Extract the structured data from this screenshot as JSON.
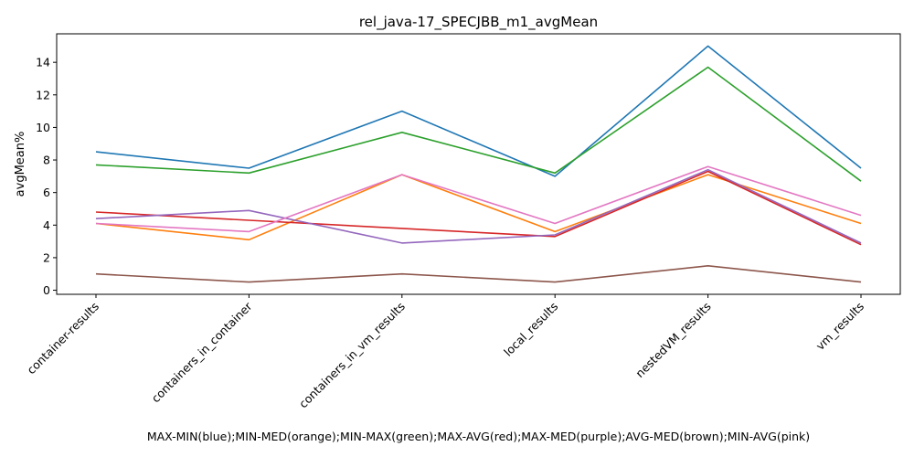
{
  "chart_data": {
    "type": "line",
    "title": "rel_java-17_SPECJBB_m1_avgMean",
    "xlabel": "MAX-MIN(blue);MIN-MED(orange);MIN-MAX(green);MAX-AVG(red);MAX-MED(purple);AVG-MED(brown);MIN-AVG(pink)",
    "ylabel": "avgMean%",
    "categories": [
      "container-results",
      "containers_in_container",
      "containers_in_vm_results",
      "local_results",
      "nestedVM_results",
      "vm_results"
    ],
    "ylim": [
      -0.25,
      15.75
    ],
    "yticks": [
      0,
      2,
      4,
      6,
      8,
      10,
      12,
      14
    ],
    "ytick_labels": [
      "0",
      "2",
      "4",
      "6",
      "8",
      "10",
      "12",
      "14"
    ],
    "grid": false,
    "series": [
      {
        "color": "#1f77b4",
        "values": [
          8.5,
          7.5,
          11.0,
          7.0,
          15.0,
          7.5
        ]
      },
      {
        "color": "#ff7f0e",
        "values": [
          4.1,
          3.1,
          7.1,
          3.6,
          7.1,
          4.1
        ]
      },
      {
        "color": "#2ca02c",
        "values": [
          7.7,
          7.2,
          9.7,
          7.2,
          13.7,
          6.7
        ]
      },
      {
        "color": "#d62728",
        "values": [
          4.8,
          4.3,
          3.8,
          3.3,
          7.3,
          2.8
        ]
      },
      {
        "color": "#9467bd",
        "values": [
          4.4,
          4.9,
          2.9,
          3.4,
          7.4,
          2.9
        ]
      },
      {
        "color": "#8c564b",
        "values": [
          1.0,
          0.5,
          1.0,
          0.5,
          1.5,
          0.5
        ]
      },
      {
        "color": "#e377c2",
        "values": [
          4.1,
          3.6,
          7.1,
          4.1,
          7.6,
          4.6
        ]
      }
    ]
  }
}
